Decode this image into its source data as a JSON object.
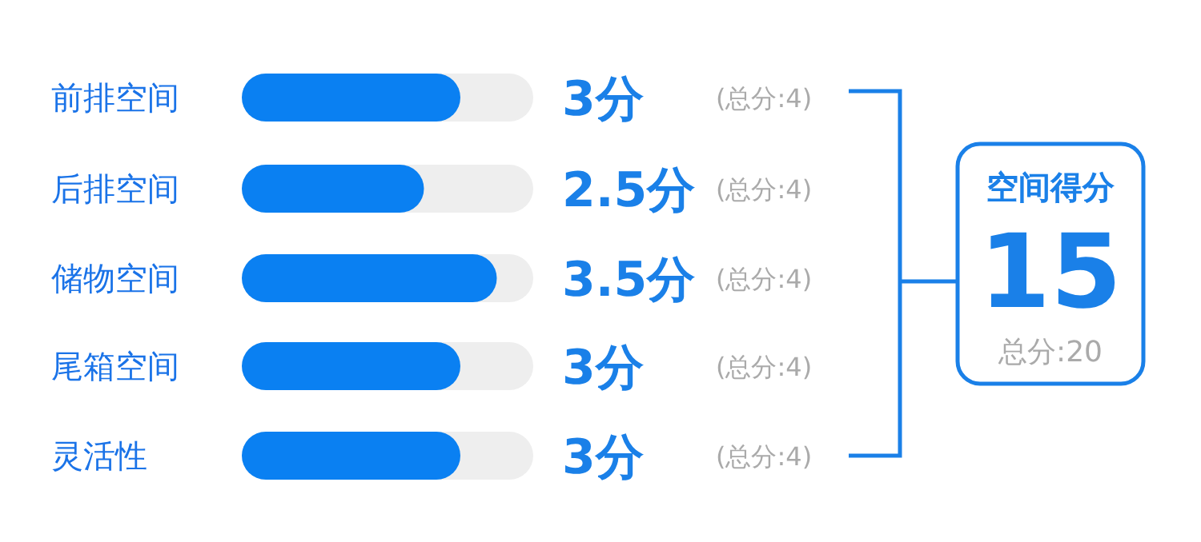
{
  "chart_data": {
    "type": "bar",
    "orientation": "horizontal",
    "categories": [
      "前排空间",
      "后排空间",
      "储物空间",
      "尾箱空间",
      "灵活性"
    ],
    "values": [
      3,
      2.5,
      3.5,
      3,
      3
    ],
    "value_labels": [
      "3分",
      "2.5分",
      "3.5分",
      "3分",
      "3分"
    ],
    "color": "#0a80f2",
    "xlim": [
      0,
      4
    ],
    "tick_labels": "y",
    "annotations": [
      "(总分:4)",
      "(总分:4)",
      "(总分:4)",
      "(总分:4)",
      "(总分:4)",
      "空间得分",
      "15",
      "总分:20"
    ]
  }
}
